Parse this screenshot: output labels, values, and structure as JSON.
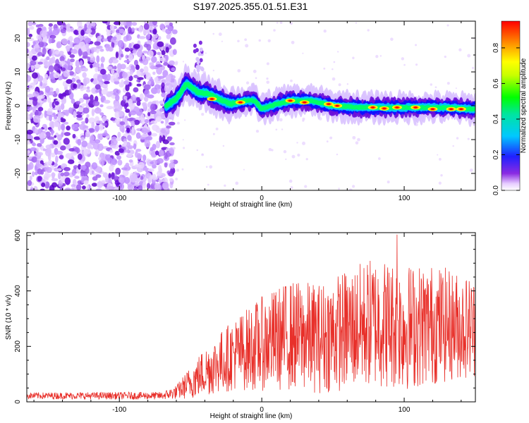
{
  "title": "S197.2025.355.01.51.E31",
  "colors": {
    "background": "#ffffff",
    "snr_line": "#e8302a",
    "axis": "#000000"
  },
  "chart_data": [
    {
      "type": "heatmap",
      "name": "spectrogram",
      "xlabel": "Height of straight line (km)",
      "ylabel": "Frequency (Hz)",
      "xlim": [
        -165,
        150
      ],
      "ylim": [
        -25,
        25
      ],
      "x_ticks": [
        -100,
        0,
        100
      ],
      "y_ticks": [
        -20,
        -10,
        0,
        10,
        20
      ],
      "grid": false,
      "noise_region_x": [
        -165,
        -65
      ],
      "signal_start_x": -67,
      "ridge": [
        {
          "x": -67,
          "y": 0
        },
        {
          "x": -60,
          "y": 2
        },
        {
          "x": -53,
          "y": 6.5
        },
        {
          "x": -45,
          "y": 4
        },
        {
          "x": -38,
          "y": 3.5
        },
        {
          "x": -30,
          "y": 2
        },
        {
          "x": -22,
          "y": 0.5
        },
        {
          "x": -12,
          "y": 1.5
        },
        {
          "x": -5,
          "y": 1.5
        },
        {
          "x": 0,
          "y": -1
        },
        {
          "x": 10,
          "y": 0.5
        },
        {
          "x": 20,
          "y": 1.5
        },
        {
          "x": 35,
          "y": 1.5
        },
        {
          "x": 50,
          "y": 0
        },
        {
          "x": 70,
          "y": -0.5
        },
        {
          "x": 90,
          "y": -0.5
        },
        {
          "x": 110,
          "y": -0.5
        },
        {
          "x": 130,
          "y": -0.5
        },
        {
          "x": 150,
          "y": -1
        }
      ],
      "peaks": [
        {
          "x": -35,
          "y": 2
        },
        {
          "x": -15,
          "y": 1
        },
        {
          "x": 20,
          "y": 1.5
        },
        {
          "x": 30,
          "y": 1
        },
        {
          "x": 47,
          "y": 0.5
        },
        {
          "x": 53,
          "y": 0
        },
        {
          "x": 78,
          "y": -0.5
        },
        {
          "x": 86,
          "y": -0.8
        },
        {
          "x": 95,
          "y": -0.5
        },
        {
          "x": 108,
          "y": -0.5
        },
        {
          "x": 120,
          "y": -1
        },
        {
          "x": 133,
          "y": -1
        },
        {
          "x": 140,
          "y": -1
        }
      ],
      "colorbar": {
        "label": "Normalized spectral amplitude",
        "range": [
          0,
          0.95
        ],
        "ticks": [
          0.0,
          0.2,
          0.4,
          0.6,
          0.8
        ],
        "tick_labels": [
          "0.0",
          "0.2",
          "0.4",
          "0.6",
          "0.8"
        ]
      }
    },
    {
      "type": "line",
      "name": "snr",
      "xlabel": "Height of straight line (km)",
      "ylabel": "SNR (10 * v/v)",
      "xlim": [
        -165,
        150
      ],
      "ylim": [
        0,
        610
      ],
      "x_ticks": [
        -100,
        0,
        100
      ],
      "y_ticks": [
        0,
        200,
        400,
        600
      ],
      "grid": false,
      "envelope": [
        {
          "x": -165,
          "mean": 22,
          "amp": 12
        },
        {
          "x": -70,
          "mean": 22,
          "amp": 14
        },
        {
          "x": -60,
          "mean": 35,
          "amp": 25
        },
        {
          "x": -50,
          "mean": 70,
          "amp": 60
        },
        {
          "x": -40,
          "mean": 110,
          "amp": 90
        },
        {
          "x": -20,
          "mean": 170,
          "amp": 130
        },
        {
          "x": 0,
          "mean": 210,
          "amp": 170
        },
        {
          "x": 20,
          "mean": 240,
          "amp": 200
        },
        {
          "x": 40,
          "mean": 230,
          "amp": 200
        },
        {
          "x": 60,
          "mean": 260,
          "amp": 220
        },
        {
          "x": 80,
          "mean": 290,
          "amp": 240
        },
        {
          "x": 100,
          "mean": 270,
          "amp": 230
        },
        {
          "x": 120,
          "mean": 280,
          "amp": 220
        },
        {
          "x": 150,
          "mean": 270,
          "amp": 180
        }
      ],
      "max_point": {
        "x": 95,
        "y": 603
      }
    }
  ]
}
